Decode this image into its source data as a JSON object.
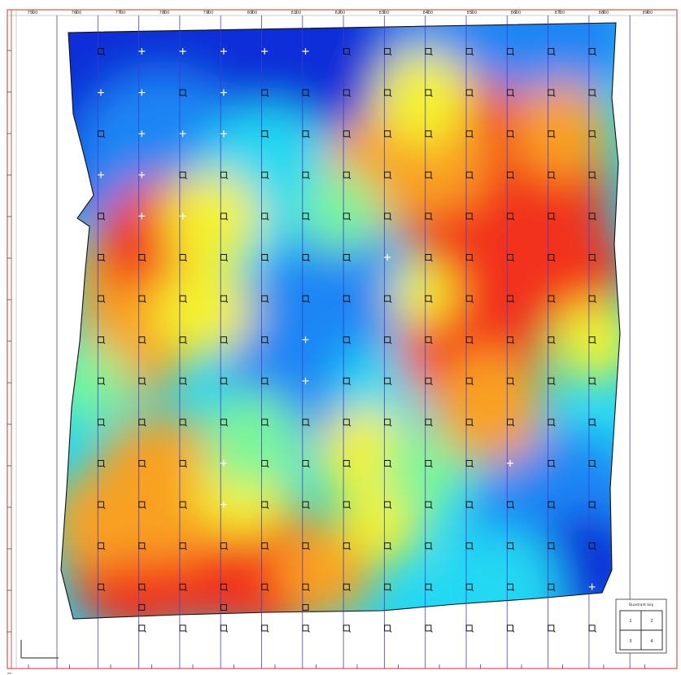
{
  "map": {
    "colors": {
      "frame_red": "#d83030",
      "grid_line": "#3c3ccc",
      "ramp": [
        "#0a2fd8",
        "#1a86f5",
        "#22d8f2",
        "#7cf59a",
        "#f4f22e",
        "#f9a020",
        "#f2301a"
      ]
    },
    "top_tick_labels": [
      "7500",
      "7600",
      "7700",
      "7800",
      "7900",
      "8000",
      "8100",
      "8200",
      "8300",
      "8400",
      "8500",
      "8600",
      "8700",
      "8800",
      "8900"
    ],
    "markers": {
      "icon": "square-marker-icon",
      "highlight_icon": "cross-marker-icon"
    },
    "legend": {
      "title": "Quadrant key",
      "cells": [
        "1",
        "2",
        "3",
        "4"
      ]
    }
  }
}
